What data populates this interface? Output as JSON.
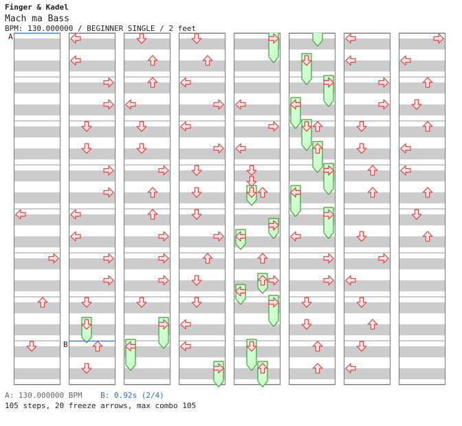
{
  "header": {
    "artist": "Finger & Kadel",
    "title": "Mach ma Bass",
    "info": "BPM: 130.000000 / BEGINNER SINGLE / 2 feet"
  },
  "markers": {
    "a": "A",
    "b": "B"
  },
  "footer": {
    "bpm_a": "A: 130.000000 BPM",
    "bpm_b": "B: 0.92s (2/4)",
    "summary": "105 steps, 20 freeze arrows, max combo 105"
  },
  "colors": {
    "arrow_fill": "#ffe4e4",
    "arrow_stroke": "#dd4444",
    "freeze_fill": "#ccffcc",
    "freeze_stroke": "#449944",
    "stripe": "#cccccc",
    "marker_line": "#4477cc"
  },
  "chart_data": {
    "type": "table",
    "columns": 8,
    "beats_per_column": 32,
    "lanes": [
      "left",
      "down",
      "up",
      "right"
    ],
    "notes": [
      {
        "col": 0,
        "beat": 16,
        "lane": "left"
      },
      {
        "col": 0,
        "beat": 20,
        "lane": "right"
      },
      {
        "col": 0,
        "beat": 24,
        "lane": "up"
      },
      {
        "col": 0,
        "beat": 28,
        "lane": "down"
      },
      {
        "col": 1,
        "beat": 0,
        "lane": "left"
      },
      {
        "col": 1,
        "beat": 2,
        "lane": "left"
      },
      {
        "col": 1,
        "beat": 4,
        "lane": "right"
      },
      {
        "col": 1,
        "beat": 6,
        "lane": "right"
      },
      {
        "col": 1,
        "beat": 8,
        "lane": "down"
      },
      {
        "col": 1,
        "beat": 10,
        "lane": "down"
      },
      {
        "col": 1,
        "beat": 12,
        "lane": "right"
      },
      {
        "col": 1,
        "beat": 14,
        "lane": "right"
      },
      {
        "col": 1,
        "beat": 16,
        "lane": "left"
      },
      {
        "col": 1,
        "beat": 18,
        "lane": "left"
      },
      {
        "col": 1,
        "beat": 20,
        "lane": "right"
      },
      {
        "col": 1,
        "beat": 22,
        "lane": "right"
      },
      {
        "col": 1,
        "beat": 24,
        "lane": "down"
      },
      {
        "col": 1,
        "beat": 28,
        "lane": "up"
      },
      {
        "col": 1,
        "beat": 30,
        "lane": "down"
      },
      {
        "col": 2,
        "beat": 0,
        "lane": "down"
      },
      {
        "col": 2,
        "beat": 2,
        "lane": "up"
      },
      {
        "col": 2,
        "beat": 4,
        "lane": "up"
      },
      {
        "col": 2,
        "beat": 6,
        "lane": "left"
      },
      {
        "col": 2,
        "beat": 8,
        "lane": "down"
      },
      {
        "col": 2,
        "beat": 10,
        "lane": "down"
      },
      {
        "col": 2,
        "beat": 12,
        "lane": "right"
      },
      {
        "col": 2,
        "beat": 14,
        "lane": "up"
      },
      {
        "col": 2,
        "beat": 16,
        "lane": "up"
      },
      {
        "col": 2,
        "beat": 18,
        "lane": "right"
      },
      {
        "col": 2,
        "beat": 20,
        "lane": "right"
      },
      {
        "col": 2,
        "beat": 22,
        "lane": "right"
      },
      {
        "col": 2,
        "beat": 24,
        "lane": "down"
      },
      {
        "col": 3,
        "beat": 0,
        "lane": "down"
      },
      {
        "col": 3,
        "beat": 2,
        "lane": "up"
      },
      {
        "col": 3,
        "beat": 4,
        "lane": "left"
      },
      {
        "col": 3,
        "beat": 6,
        "lane": "right"
      },
      {
        "col": 3,
        "beat": 8,
        "lane": "left"
      },
      {
        "col": 3,
        "beat": 10,
        "lane": "right"
      },
      {
        "col": 3,
        "beat": 12,
        "lane": "down"
      },
      {
        "col": 3,
        "beat": 14,
        "lane": "down"
      },
      {
        "col": 3,
        "beat": 16,
        "lane": "down"
      },
      {
        "col": 3,
        "beat": 18,
        "lane": "right"
      },
      {
        "col": 3,
        "beat": 20,
        "lane": "up"
      },
      {
        "col": 3,
        "beat": 22,
        "lane": "down"
      },
      {
        "col": 3,
        "beat": 24,
        "lane": "down"
      },
      {
        "col": 3,
        "beat": 26,
        "lane": "left"
      },
      {
        "col": 3,
        "beat": 28,
        "lane": "left"
      },
      {
        "col": 4,
        "beat": 6,
        "lane": "left"
      },
      {
        "col": 4,
        "beat": 8,
        "lane": "right"
      },
      {
        "col": 4,
        "beat": 10,
        "lane": "left"
      },
      {
        "col": 4,
        "beat": 12,
        "lane": "down"
      },
      {
        "col": 4,
        "beat": 13,
        "lane": "down"
      },
      {
        "col": 4,
        "beat": 14,
        "lane": "up"
      },
      {
        "col": 4,
        "beat": 17,
        "lane": "right"
      },
      {
        "col": 4,
        "beat": 20,
        "lane": "up"
      },
      {
        "col": 4,
        "beat": 22,
        "lane": "right"
      },
      {
        "col": 5,
        "beat": 4,
        "lane": "right"
      },
      {
        "col": 5,
        "beat": 6,
        "lane": "left"
      },
      {
        "col": 5,
        "beat": 8,
        "lane": "up"
      },
      {
        "col": 5,
        "beat": 12,
        "lane": "right"
      },
      {
        "col": 5,
        "beat": 14,
        "lane": "left"
      },
      {
        "col": 5,
        "beat": 18,
        "lane": "left"
      },
      {
        "col": 5,
        "beat": 20,
        "lane": "right"
      },
      {
        "col": 5,
        "beat": 22,
        "lane": "right"
      },
      {
        "col": 5,
        "beat": 24,
        "lane": "down"
      },
      {
        "col": 5,
        "beat": 26,
        "lane": "down"
      },
      {
        "col": 5,
        "beat": 28,
        "lane": "up"
      },
      {
        "col": 5,
        "beat": 30,
        "lane": "up"
      },
      {
        "col": 6,
        "beat": 0,
        "lane": "left"
      },
      {
        "col": 6,
        "beat": 2,
        "lane": "left"
      },
      {
        "col": 6,
        "beat": 4,
        "lane": "right"
      },
      {
        "col": 6,
        "beat": 6,
        "lane": "right"
      },
      {
        "col": 6,
        "beat": 8,
        "lane": "down"
      },
      {
        "col": 6,
        "beat": 10,
        "lane": "down"
      },
      {
        "col": 6,
        "beat": 12,
        "lane": "up"
      },
      {
        "col": 6,
        "beat": 14,
        "lane": "up"
      },
      {
        "col": 6,
        "beat": 18,
        "lane": "down"
      },
      {
        "col": 6,
        "beat": 20,
        "lane": "right"
      },
      {
        "col": 6,
        "beat": 22,
        "lane": "left"
      },
      {
        "col": 6,
        "beat": 24,
        "lane": "down"
      },
      {
        "col": 6,
        "beat": 26,
        "lane": "up"
      },
      {
        "col": 6,
        "beat": 28,
        "lane": "down"
      },
      {
        "col": 6,
        "beat": 30,
        "lane": "left"
      },
      {
        "col": 7,
        "beat": 0,
        "lane": "right"
      },
      {
        "col": 7,
        "beat": 2,
        "lane": "left"
      },
      {
        "col": 7,
        "beat": 4,
        "lane": "up"
      },
      {
        "col": 7,
        "beat": 6,
        "lane": "down"
      },
      {
        "col": 7,
        "beat": 8,
        "lane": "up"
      },
      {
        "col": 7,
        "beat": 10,
        "lane": "left"
      },
      {
        "col": 7,
        "beat": 12,
        "lane": "left"
      },
      {
        "col": 7,
        "beat": 14,
        "lane": "up"
      },
      {
        "col": 7,
        "beat": 16,
        "lane": "down"
      },
      {
        "col": 7,
        "beat": 18,
        "lane": "up"
      }
    ],
    "freezes": [
      {
        "col": 1,
        "lane": "down",
        "start": 26,
        "end": 28
      },
      {
        "col": 2,
        "lane": "left",
        "start": 28,
        "end": 30.5
      },
      {
        "col": 2,
        "lane": "right",
        "start": 26,
        "end": 28.5
      },
      {
        "col": 3,
        "lane": "right",
        "start": 30,
        "end": 32
      },
      {
        "col": 4,
        "lane": "right",
        "start": 0,
        "end": 2.5
      },
      {
        "col": 4,
        "lane": "down",
        "start": 14,
        "end": 15.5
      },
      {
        "col": 4,
        "lane": "right",
        "start": 17,
        "end": 18.5
      },
      {
        "col": 4,
        "lane": "left",
        "start": 18,
        "end": 19.5
      },
      {
        "col": 4,
        "lane": "up",
        "start": 22,
        "end": 23.5
      },
      {
        "col": 4,
        "lane": "left",
        "start": 23,
        "end": 24.5
      },
      {
        "col": 4,
        "lane": "right",
        "start": 24,
        "end": 26.5
      },
      {
        "col": 4,
        "lane": "down",
        "start": 28,
        "end": 30.5
      },
      {
        "col": 4,
        "lane": "up",
        "start": 30,
        "end": 32
      },
      {
        "col": 5,
        "lane": "up",
        "start": -1,
        "end": 1
      },
      {
        "col": 5,
        "lane": "down",
        "start": 2,
        "end": 4.5
      },
      {
        "col": 5,
        "lane": "right",
        "start": 4,
        "end": 6.5
      },
      {
        "col": 5,
        "lane": "left",
        "start": 6,
        "end": 8.5
      },
      {
        "col": 5,
        "lane": "down",
        "start": 8,
        "end": 10.5
      },
      {
        "col": 5,
        "lane": "up",
        "start": 10,
        "end": 12.5
      },
      {
        "col": 5,
        "lane": "right",
        "start": 12,
        "end": 14.5
      },
      {
        "col": 5,
        "lane": "left",
        "start": 14,
        "end": 16.5
      },
      {
        "col": 5,
        "lane": "right",
        "start": 16,
        "end": 18.5
      }
    ],
    "markers": [
      {
        "label": "A",
        "col": 0,
        "beat": 0
      },
      {
        "label": "B",
        "col": 1,
        "beat": 28
      }
    ]
  }
}
